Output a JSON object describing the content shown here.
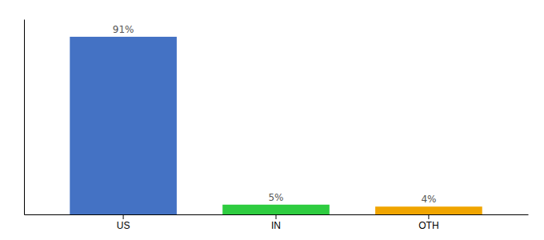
{
  "chart_data": {
    "type": "bar",
    "categories": [
      "US",
      "IN",
      "OTH"
    ],
    "values": [
      91,
      5,
      4
    ],
    "value_labels": [
      "91%",
      "5%",
      "4%"
    ],
    "colors": [
      "#4472c4",
      "#2ecc40",
      "#f0a500"
    ],
    "ylim": [
      0,
      100
    ],
    "data_labels": true,
    "tick_labels": "x"
  }
}
